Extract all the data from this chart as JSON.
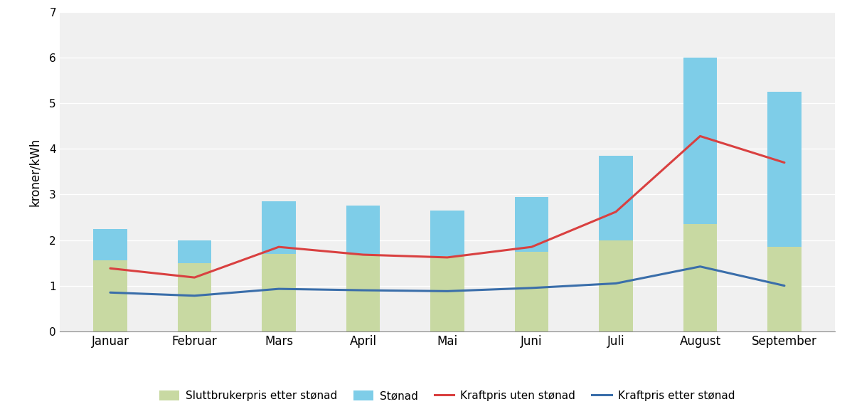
{
  "months": [
    "Januar",
    "Februar",
    "Mars",
    "April",
    "Mai",
    "Juni",
    "Juli",
    "August",
    "September"
  ],
  "sluttbrukerpris": [
    1.55,
    1.5,
    1.7,
    1.7,
    1.65,
    1.75,
    2.0,
    2.35,
    1.85
  ],
  "stonad": [
    0.7,
    0.5,
    1.15,
    1.05,
    1.0,
    1.2,
    1.85,
    3.65,
    3.4
  ],
  "kraftpris_uten_stonad": [
    1.38,
    1.18,
    1.85,
    1.68,
    1.62,
    1.85,
    2.62,
    4.28,
    3.7
  ],
  "kraftpris_etter_stonad": [
    0.85,
    0.78,
    0.93,
    0.9,
    0.88,
    0.95,
    1.05,
    1.42,
    1.0
  ],
  "color_sluttbrukerpris": "#c8d9a2",
  "color_stonad": "#7ecde8",
  "color_kraftpris_uten_stonad": "#d94040",
  "color_kraftpris_etter_stonad": "#3a6eaa",
  "ylabel": "kroner/kWh",
  "ylim": [
    0,
    7
  ],
  "yticks": [
    0,
    1,
    2,
    3,
    4,
    5,
    6,
    7
  ],
  "legend_labels": [
    "Sluttbrukerpris etter stønad",
    "Stønad",
    "Kraftpris uten stønad",
    "Kraftpris etter stønad"
  ],
  "background_color": "#ffffff",
  "plot_bg_color": "#f0f0f0",
  "grid_color": "#cccccc",
  "bar_width": 0.4
}
